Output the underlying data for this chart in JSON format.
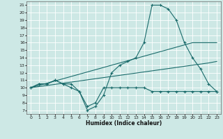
{
  "xlabel": "Humidex (Indice chaleur)",
  "xlim": [
    -0.5,
    23.5
  ],
  "ylim": [
    6.5,
    21.5
  ],
  "xticks": [
    0,
    1,
    2,
    3,
    4,
    5,
    6,
    7,
    8,
    9,
    10,
    11,
    12,
    13,
    14,
    15,
    16,
    17,
    18,
    19,
    20,
    21,
    22,
    23
  ],
  "yticks": [
    7,
    8,
    9,
    10,
    11,
    12,
    13,
    14,
    15,
    16,
    17,
    18,
    19,
    20,
    21
  ],
  "bg_color": "#cde8e5",
  "grid_color": "#ffffff",
  "line_color": "#1a6b6b",
  "line1_x": [
    0,
    1,
    2,
    3,
    4,
    5,
    6,
    7,
    8,
    9,
    10,
    11,
    12,
    13,
    14,
    15,
    16,
    17,
    18,
    19,
    20,
    21,
    22,
    23
  ],
  "line1_y": [
    10.0,
    10.3,
    10.6,
    10.9,
    11.2,
    11.5,
    11.8,
    12.1,
    12.4,
    12.7,
    13.0,
    13.3,
    13.6,
    13.9,
    14.2,
    14.5,
    14.8,
    15.1,
    15.4,
    15.7,
    16.0,
    16.0,
    16.0,
    16.0
  ],
  "line2_x": [
    0,
    1,
    2,
    3,
    4,
    5,
    6,
    7,
    8,
    9,
    10,
    11,
    12,
    13,
    14,
    15,
    16,
    17,
    18,
    19,
    20,
    21,
    22,
    23
  ],
  "line2_y": [
    10.0,
    10.15,
    10.3,
    10.45,
    10.6,
    10.75,
    10.9,
    11.05,
    11.2,
    11.35,
    11.5,
    11.65,
    11.8,
    11.95,
    12.1,
    12.25,
    12.4,
    12.55,
    12.7,
    12.85,
    13.0,
    13.15,
    13.3,
    13.5
  ],
  "line3_x": [
    0,
    1,
    2,
    3,
    4,
    5,
    6,
    7,
    8,
    9,
    10,
    11,
    12,
    13,
    14,
    15,
    16,
    17,
    18,
    19,
    20,
    21,
    22,
    23
  ],
  "line3_y": [
    10.0,
    10.5,
    10.5,
    11.0,
    10.5,
    10.5,
    9.5,
    7.0,
    7.5,
    9.0,
    12.0,
    13.0,
    13.5,
    14.0,
    16.0,
    21.0,
    21.0,
    20.5,
    19.0,
    16.0,
    14.0,
    12.5,
    10.5,
    9.5
  ],
  "line4_x": [
    0,
    1,
    2,
    3,
    4,
    5,
    6,
    7,
    8,
    9,
    10,
    11,
    12,
    13,
    14,
    15,
    16,
    17,
    18,
    19,
    20,
    21,
    22,
    23
  ],
  "line4_y": [
    10.0,
    10.5,
    10.5,
    11.0,
    10.5,
    10.0,
    9.5,
    7.5,
    8.0,
    10.0,
    10.0,
    10.0,
    10.0,
    10.0,
    10.0,
    9.5,
    9.5,
    9.5,
    9.5,
    9.5,
    9.5,
    9.5,
    9.5,
    9.5
  ]
}
